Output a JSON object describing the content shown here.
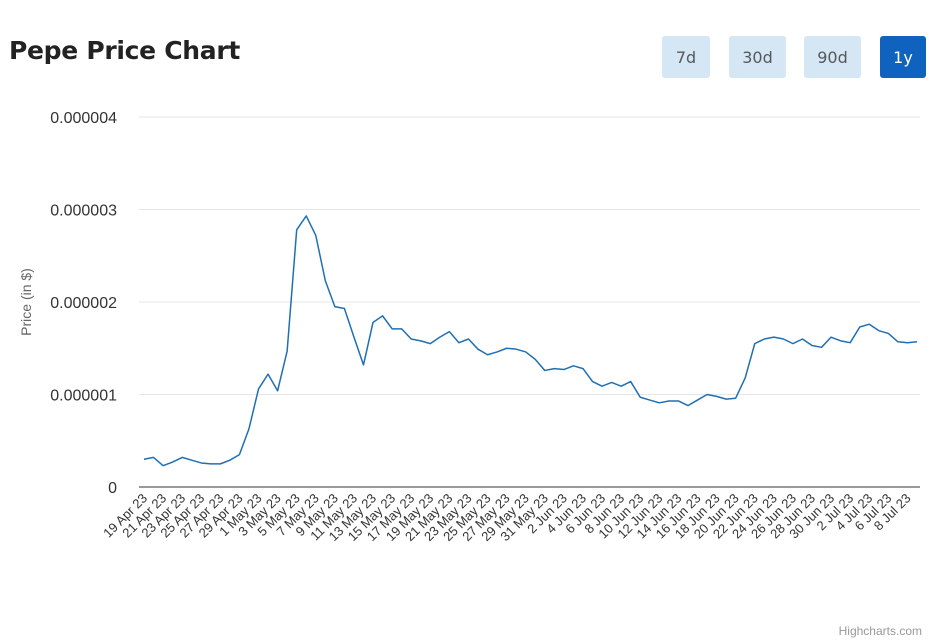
{
  "page": {
    "title": "Pepe Price Chart",
    "credit": "Highcharts.com"
  },
  "range_buttons": [
    {
      "label": "7d",
      "active": false
    },
    {
      "label": "30d",
      "active": false
    },
    {
      "label": "90d",
      "active": false
    },
    {
      "label": "1y",
      "active": true
    }
  ],
  "colors": {
    "line": "#1f6fb4",
    "grid": "#e6e6e6",
    "axis": "#333333",
    "active_button": "#0f63be",
    "button": "#d5e6f4"
  },
  "chart_data": {
    "type": "line",
    "title": "",
    "xlabel": "",
    "ylabel": "Price (in $)",
    "ylim": [
      0,
      4e-06
    ],
    "y_ticks": [
      "0",
      "0.000001",
      "0.000002",
      "0.000003",
      "0.000004"
    ],
    "x_tick_labels": [
      "19 Apr 23",
      "21 Apr 23",
      "23 Apr 23",
      "25 Apr 23",
      "27 Apr 23",
      "29 Apr 23",
      "1 May 23",
      "3 May 23",
      "5 May 23",
      "7 May 23",
      "9 May 23",
      "11 May 23",
      "13 May 23",
      "15 May 23",
      "17 May 23",
      "19 May 23",
      "21 May 23",
      "23 May 23",
      "25 May 23",
      "27 May 23",
      "29 May 23",
      "31 May 23",
      "2 Jun 23",
      "4 Jun 23",
      "6 Jun 23",
      "8 Jun 23",
      "10 Jun 23",
      "12 Jun 23",
      "14 Jun 23",
      "16 Jun 23",
      "18 Jun 23",
      "20 Jun 23",
      "22 Jun 23",
      "24 Jun 23",
      "26 Jun 23",
      "28 Jun 23",
      "30 Jun 23",
      "2 Jul 23",
      "4 Jul 23",
      "6 Jul 23",
      "8 Jul 23"
    ],
    "grid": true,
    "series": [
      {
        "x": [
          "19 Apr 23",
          "20 Apr 23",
          "21 Apr 23",
          "22 Apr 23",
          "23 Apr 23",
          "24 Apr 23",
          "25 Apr 23",
          "26 Apr 23",
          "27 Apr 23",
          "28 Apr 23",
          "29 Apr 23",
          "30 Apr 23",
          "1 May 23",
          "2 May 23",
          "3 May 23",
          "4 May 23",
          "5 May 23",
          "6 May 23",
          "7 May 23",
          "8 May 23",
          "9 May 23",
          "10 May 23",
          "11 May 23",
          "12 May 23",
          "13 May 23",
          "14 May 23",
          "15 May 23",
          "16 May 23",
          "17 May 23",
          "18 May 23",
          "19 May 23",
          "20 May 23",
          "21 May 23",
          "22 May 23",
          "23 May 23",
          "24 May 23",
          "25 May 23",
          "26 May 23",
          "27 May 23",
          "28 May 23",
          "29 May 23",
          "30 May 23",
          "31 May 23",
          "1 Jun 23",
          "2 Jun 23",
          "3 Jun 23",
          "4 Jun 23",
          "5 Jun 23",
          "6 Jun 23",
          "7 Jun 23",
          "8 Jun 23",
          "9 Jun 23",
          "10 Jun 23",
          "11 Jun 23",
          "12 Jun 23",
          "13 Jun 23",
          "14 Jun 23",
          "15 Jun 23",
          "16 Jun 23",
          "17 Jun 23",
          "18 Jun 23",
          "19 Jun 23",
          "20 Jun 23",
          "21 Jun 23",
          "22 Jun 23",
          "23 Jun 23",
          "24 Jun 23",
          "25 Jun 23",
          "26 Jun 23",
          "27 Jun 23",
          "28 Jun 23",
          "29 Jun 23",
          "30 Jun 23",
          "1 Jul 23",
          "2 Jul 23",
          "3 Jul 23",
          "4 Jul 23",
          "5 Jul 23",
          "6 Jul 23",
          "7 Jul 23",
          "8 Jul 23",
          "9 Jul 23"
        ],
        "values": [
          3e-07,
          3.2e-07,
          2.3e-07,
          2.7e-07,
          3.2e-07,
          2.9e-07,
          2.6e-07,
          2.5e-07,
          2.5e-07,
          2.9e-07,
          3.5e-07,
          6.3e-07,
          1.06e-06,
          1.22e-06,
          1.04e-06,
          1.47e-06,
          2.78e-06,
          2.93e-06,
          2.72e-06,
          2.23e-06,
          1.95e-06,
          1.93e-06,
          1.62e-06,
          1.32e-06,
          1.78e-06,
          1.85e-06,
          1.71e-06,
          1.71e-06,
          1.6e-06,
          1.58e-06,
          1.55e-06,
          1.62e-06,
          1.68e-06,
          1.56e-06,
          1.6e-06,
          1.49e-06,
          1.43e-06,
          1.46e-06,
          1.5e-06,
          1.49e-06,
          1.46e-06,
          1.38e-06,
          1.26e-06,
          1.28e-06,
          1.27e-06,
          1.31e-06,
          1.28e-06,
          1.14e-06,
          1.09e-06,
          1.13e-06,
          1.09e-06,
          1.14e-06,
          9.7e-07,
          9.4e-07,
          9.1e-07,
          9.3e-07,
          9.3e-07,
          8.8e-07,
          9.4e-07,
          1e-06,
          9.8e-07,
          9.5e-07,
          9.6e-07,
          1.18e-06,
          1.55e-06,
          1.6e-06,
          1.62e-06,
          1.6e-06,
          1.55e-06,
          1.6e-06,
          1.53e-06,
          1.51e-06,
          1.62e-06,
          1.58e-06,
          1.56e-06,
          1.73e-06,
          1.76e-06,
          1.69e-06,
          1.66e-06,
          1.57e-06,
          1.56e-06,
          1.57e-06
        ]
      }
    ]
  }
}
